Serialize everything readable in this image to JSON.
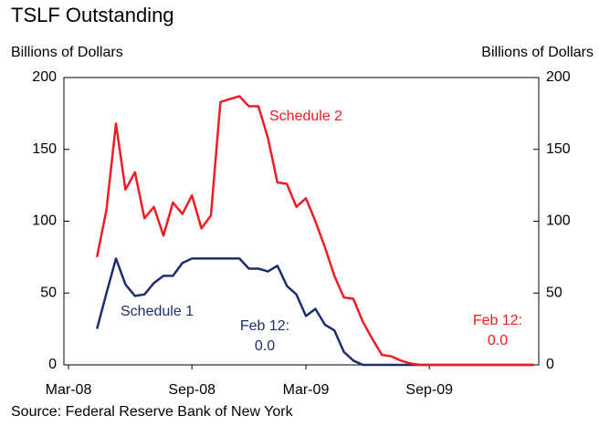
{
  "chart_data": {
    "type": "line",
    "title": "TSLF Outstanding",
    "ylabel": "Billions of Dollars",
    "y2label": "Billions of Dollars",
    "source": "Source: Federal Reserve Bank of New York",
    "categories": [
      "Mar-08",
      null,
      null,
      null,
      null,
      null,
      null,
      null,
      null,
      null,
      null,
      null,
      null,
      "Sep-08",
      null,
      null,
      null,
      null,
      null,
      null,
      null,
      null,
      null,
      null,
      null,
      "Mar-09",
      null,
      null,
      null,
      null,
      null,
      null,
      null,
      null,
      null,
      null,
      null,
      null,
      "Sep-09",
      null,
      null,
      null,
      null,
      null,
      null,
      null,
      null,
      null,
      null,
      null
    ],
    "series": [
      {
        "name": "Schedule 1",
        "color": "#1f2d6e",
        "values": [
          null,
          null,
          null,
          25,
          50,
          74,
          56,
          48,
          49,
          57,
          62,
          62,
          71,
          74,
          74,
          74,
          74,
          74,
          74,
          67,
          67,
          65,
          69,
          55,
          49,
          34,
          39,
          28,
          24,
          9,
          3,
          0,
          0,
          0,
          0,
          0,
          0,
          0,
          0,
          0,
          0,
          0,
          0,
          0,
          0,
          0,
          0,
          0,
          0,
          0
        ]
      },
      {
        "name": "Schedule 2",
        "color": "#ee1c24",
        "values": [
          null,
          null,
          null,
          75,
          108,
          168,
          122,
          134,
          102,
          110,
          90,
          113,
          105,
          118,
          95,
          104,
          183,
          185,
          187,
          180,
          180,
          158,
          127,
          126,
          110,
          116,
          100,
          82,
          62,
          47,
          46,
          30,
          18,
          7,
          6,
          3,
          1,
          0,
          0,
          0,
          0,
          0,
          0,
          0,
          0,
          0,
          0,
          0,
          0,
          0
        ]
      }
    ],
    "annotations": [
      "Feb 12:",
      "0.0",
      "Feb 12:",
      "0.0"
    ],
    "ylim": [
      0,
      200
    ],
    "yticks": [
      0,
      50,
      100,
      150,
      200
    ],
    "y2lim": [
      0,
      200
    ],
    "y2ticks": [
      0,
      50,
      100,
      150,
      200
    ]
  }
}
